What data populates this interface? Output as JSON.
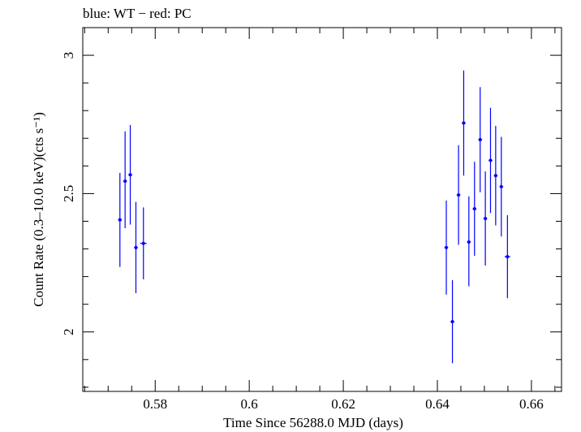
{
  "chart_data": {
    "type": "scatter",
    "title": "blue: WT − red: PC",
    "xlabel": "Time Since 56288.0 MJD (days)",
    "ylabel": "Count Rate (0.3–10.0 keV)(cts s⁻¹)",
    "xlim": [
      0.5646,
      0.6664
    ],
    "ylim": [
      1.785,
      3.1
    ],
    "x_ticks": [
      0.58,
      0.6,
      0.62,
      0.64,
      0.66
    ],
    "x_tick_labels": [
      "0.58",
      "0.6",
      "0.62",
      "0.64",
      "0.66"
    ],
    "y_ticks": [
      2,
      2.5,
      3
    ],
    "y_tick_labels": [
      "2",
      "2.5",
      "3"
    ],
    "grid": false,
    "colors": {
      "WT": "#0000ff",
      "frame": "#000000"
    },
    "series": [
      {
        "mode": "WT",
        "color": "#0000ff",
        "points": [
          {
            "x": 0.5725,
            "y": 2.405,
            "yerr_low": 0.17,
            "yerr_high": 0.17,
            "xerr": 0.0004
          },
          {
            "x": 0.5736,
            "y": 2.545,
            "yerr_low": 0.17,
            "yerr_high": 0.18,
            "xerr": 0.0004
          },
          {
            "x": 0.5747,
            "y": 2.568,
            "yerr_low": 0.18,
            "yerr_high": 0.18,
            "xerr": 0.0004
          },
          {
            "x": 0.5759,
            "y": 2.305,
            "yerr_low": 0.165,
            "yerr_high": 0.165,
            "xerr": 0.0004
          },
          {
            "x": 0.5775,
            "y": 2.32,
            "yerr_low": 0.13,
            "yerr_high": 0.13,
            "xerr": 0.0007
          },
          {
            "x": 0.6419,
            "y": 2.305,
            "yerr_low": 0.17,
            "yerr_high": 0.17,
            "xerr": 0.0004
          },
          {
            "x": 0.6432,
            "y": 2.037,
            "yerr_low": 0.15,
            "yerr_high": 0.15,
            "xerr": 0.0004
          },
          {
            "x": 0.6445,
            "y": 2.495,
            "yerr_low": 0.18,
            "yerr_high": 0.18,
            "xerr": 0.0004
          },
          {
            "x": 0.6456,
            "y": 2.755,
            "yerr_low": 0.19,
            "yerr_high": 0.19,
            "xerr": 0.0004
          },
          {
            "x": 0.6467,
            "y": 2.325,
            "yerr_low": 0.16,
            "yerr_high": 0.165,
            "xerr": 0.0004
          },
          {
            "x": 0.6479,
            "y": 2.445,
            "yerr_low": 0.17,
            "yerr_high": 0.17,
            "xerr": 0.0004
          },
          {
            "x": 0.6491,
            "y": 2.695,
            "yerr_low": 0.19,
            "yerr_high": 0.19,
            "xerr": 0.0004
          },
          {
            "x": 0.6502,
            "y": 2.41,
            "yerr_low": 0.17,
            "yerr_high": 0.17,
            "xerr": 0.0004
          },
          {
            "x": 0.6513,
            "y": 2.62,
            "yerr_low": 0.19,
            "yerr_high": 0.19,
            "xerr": 0.0004
          },
          {
            "x": 0.6524,
            "y": 2.565,
            "yerr_low": 0.18,
            "yerr_high": 0.18,
            "xerr": 0.0004
          },
          {
            "x": 0.6536,
            "y": 2.525,
            "yerr_low": 0.18,
            "yerr_high": 0.18,
            "xerr": 0.0004
          },
          {
            "x": 0.6549,
            "y": 2.272,
            "yerr_low": 0.15,
            "yerr_high": 0.15,
            "xerr": 0.0006
          }
        ]
      }
    ]
  }
}
